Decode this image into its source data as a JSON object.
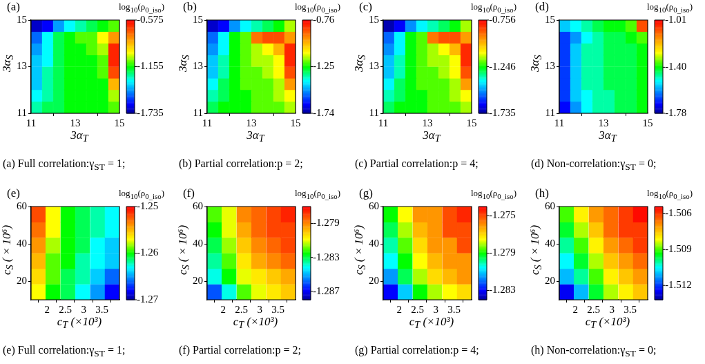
{
  "chart_data": [
    {
      "type": "heatmap",
      "title": "(a)",
      "xlabel": "3α$_{T}$",
      "ylabel": "3α$_{S}$",
      "clabel": "log$_{10}$(ρ$_{0_iso}$)",
      "annotations": [
        "(a) Full correlation:γ$_{ST}$ = 1;"
      ],
      "x": [
        11.25,
        11.75,
        12.25,
        12.75,
        13.25,
        13.75,
        14.25,
        14.75
      ],
      "y": [
        14.75,
        14.25,
        13.75,
        13.25,
        12.75,
        12.25,
        11.75,
        11.25
      ],
      "xlim": [
        11,
        15
      ],
      "xticks": [
        11,
        13,
        15
      ],
      "ylim": [
        11,
        15
      ],
      "yticks": [
        11,
        13,
        15
      ],
      "clim": [
        -1.735,
        -0.575
      ],
      "cticks": [
        -1.735,
        -1.155,
        -0.575
      ],
      "cells": [
        [
          -1.68,
          -1.62,
          -1.44,
          -1.33,
          -1.27,
          -1.21,
          -1.16,
          -1.1
        ],
        [
          -1.5,
          -1.33,
          -1.21,
          -1.16,
          -1.1,
          -1.1,
          -0.98,
          -0.81
        ],
        [
          -1.44,
          -1.33,
          -1.21,
          -1.16,
          -1.16,
          -1.1,
          -1.04,
          -0.63
        ],
        [
          -1.39,
          -1.33,
          -1.21,
          -1.16,
          -1.16,
          -1.16,
          -1.1,
          -0.63
        ],
        [
          -1.39,
          -1.27,
          -1.21,
          -1.16,
          -1.16,
          -1.16,
          -1.1,
          -0.69
        ],
        [
          -1.39,
          -1.27,
          -1.21,
          -1.16,
          -1.16,
          -1.16,
          -1.16,
          -0.86
        ],
        [
          -1.33,
          -1.27,
          -1.21,
          -1.16,
          -1.16,
          -1.16,
          -1.16,
          -1.04
        ],
        [
          -1.27,
          -1.21,
          -1.21,
          -1.16,
          -1.16,
          -1.16,
          -1.16,
          -1.1
        ]
      ]
    },
    {
      "type": "heatmap",
      "title": "(b)",
      "xlabel": "3α$_{T}$",
      "ylabel": "3α$_{S}$",
      "clabel": "log$_{10}$(ρ$_{0_iso}$)",
      "annotations": [
        "(b) Partial correlation:p = 2;"
      ],
      "x": [
        11.25,
        11.75,
        12.25,
        12.75,
        13.25,
        13.75,
        14.25,
        14.75
      ],
      "y": [
        14.75,
        14.25,
        13.75,
        13.25,
        12.75,
        12.25,
        11.75,
        11.25
      ],
      "xlim": [
        11,
        15
      ],
      "xticks": [
        11,
        13,
        15
      ],
      "ylim": [
        11,
        15
      ],
      "yticks": [
        11,
        13,
        15
      ],
      "clim": [
        -1.74,
        -0.76
      ],
      "cticks": [
        -1.74,
        -1.25,
        -0.76
      ],
      "cells": [
        [
          -1.69,
          -1.64,
          -1.5,
          -1.4,
          -1.35,
          -1.3,
          -1.25,
          -1.15
        ],
        [
          -1.54,
          -1.4,
          -1.25,
          -1.2,
          -0.91,
          -0.86,
          -0.86,
          -0.96
        ],
        [
          -1.5,
          -1.4,
          -1.25,
          -1.2,
          -1.15,
          -1.1,
          -1.0,
          -0.81
        ],
        [
          -1.45,
          -1.35,
          -1.25,
          -1.2,
          -1.15,
          -1.15,
          -1.1,
          -0.81
        ],
        [
          -1.45,
          -1.35,
          -1.25,
          -1.2,
          -1.2,
          -1.15,
          -1.1,
          -0.86
        ],
        [
          -1.4,
          -1.3,
          -1.25,
          -1.2,
          -1.2,
          -1.2,
          -1.15,
          -0.96
        ],
        [
          -1.35,
          -1.3,
          -1.25,
          -1.25,
          -1.2,
          -1.2,
          -1.15,
          -1.1
        ],
        [
          -1.3,
          -1.25,
          -1.25,
          -1.25,
          -1.2,
          -1.2,
          -1.2,
          -1.15
        ]
      ]
    },
    {
      "type": "heatmap",
      "title": "(c)",
      "xlabel": "3α$_{T}$",
      "ylabel": "3α$_{S}$",
      "clabel": "log$_{10}$(ρ$_{0_iso}$)",
      "annotations": [
        "(c) Partial correlation:p = 4;"
      ],
      "x": [
        11.25,
        11.75,
        12.25,
        12.75,
        13.25,
        13.75,
        14.25,
        14.75
      ],
      "y": [
        14.75,
        14.25,
        13.75,
        13.25,
        12.75,
        12.25,
        11.75,
        11.25
      ],
      "xlim": [
        11,
        15
      ],
      "xticks": [
        11,
        13,
        15
      ],
      "ylim": [
        11,
        15
      ],
      "yticks": [
        11,
        13,
        15
      ],
      "clim": [
        -1.735,
        -0.756
      ],
      "cticks": [
        -1.735,
        -1.246,
        -0.756
      ],
      "cells": [
        [
          -1.71,
          -1.64,
          -1.5,
          -1.4,
          -1.35,
          -1.3,
          -1.25,
          -1.15
        ],
        [
          -1.54,
          -1.4,
          -1.25,
          -1.2,
          -0.91,
          -0.86,
          -0.86,
          -0.96
        ],
        [
          -1.5,
          -1.4,
          -1.25,
          -1.2,
          -1.15,
          -1.1,
          -1.0,
          -0.81
        ],
        [
          -1.45,
          -1.35,
          -1.25,
          -1.2,
          -1.15,
          -1.15,
          -1.1,
          -0.81
        ],
        [
          -1.45,
          -1.35,
          -1.25,
          -1.2,
          -1.2,
          -1.15,
          -1.1,
          -0.86
        ],
        [
          -1.4,
          -1.3,
          -1.25,
          -1.2,
          -1.2,
          -1.2,
          -1.15,
          -0.96
        ],
        [
          -1.35,
          -1.3,
          -1.25,
          -1.25,
          -1.2,
          -1.2,
          -1.15,
          -1.1
        ],
        [
          -1.3,
          -1.25,
          -1.25,
          -1.25,
          -1.2,
          -1.2,
          -1.2,
          -1.15
        ]
      ]
    },
    {
      "type": "heatmap",
      "title": "(d)",
      "xlabel": "3α$_{T}$",
      "ylabel": "3α$_{S}$",
      "clabel": "log$_{10}$(ρ$_{0_iso}$)",
      "annotations": [
        "(d) Non-correlation:γ$_{ST}$ = 0;"
      ],
      "x": [
        11.25,
        11.75,
        12.25,
        12.75,
        13.25,
        13.75,
        14.25,
        14.75
      ],
      "y": [
        14.75,
        14.25,
        13.75,
        13.25,
        12.75,
        12.25,
        11.75,
        11.25
      ],
      "xlim": [
        11,
        15
      ],
      "xticks": [
        11,
        13,
        15
      ],
      "ylim": [
        11,
        15
      ],
      "yticks": [
        11,
        13,
        15
      ],
      "clim": [
        -1.78,
        -1.01
      ],
      "cticks": [
        -1.78,
        {
          "value": -1.4,
          "label": "-1.40"
        },
        -1.01
      ],
      "cells": [
        [
          -1.55,
          -1.51,
          -1.47,
          -1.43,
          -1.4,
          -1.4,
          -1.36,
          -1.09
        ],
        [
          -1.66,
          -1.59,
          -1.51,
          -1.47,
          -1.43,
          -1.43,
          -1.4,
          -1.36
        ],
        [
          -1.66,
          -1.55,
          -1.47,
          -1.47,
          -1.43,
          -1.43,
          -1.43,
          -1.4
        ],
        [
          -1.66,
          -1.55,
          -1.47,
          -1.47,
          -1.43,
          -1.43,
          -1.43,
          -1.4
        ],
        [
          -1.66,
          -1.55,
          -1.47,
          -1.47,
          -1.43,
          -1.43,
          -1.43,
          -1.4
        ],
        [
          -1.66,
          -1.55,
          -1.47,
          -1.47,
          -1.43,
          -1.43,
          -1.43,
          -1.4
        ],
        [
          -1.66,
          -1.55,
          -1.51,
          -1.47,
          -1.47,
          -1.43,
          -1.43,
          -1.4
        ],
        [
          -1.7,
          -1.59,
          -1.51,
          -1.47,
          -1.47,
          -1.43,
          -1.43,
          -1.4
        ]
      ]
    },
    {
      "type": "heatmap",
      "title": "(e)",
      "xlabel": "c$_{T}$ (×10³)",
      "ylabel": "c$_{S}$ (×10⁶)",
      "clabel": "log$_{10}$(ρ$_{0_iso}$)",
      "annotations": [
        "(e) Full correlation:γ$_{ST}$ = 1;"
      ],
      "x": [
        1.76,
        2.16,
        2.57,
        2.97,
        3.38,
        3.78
      ],
      "y": [
        55.8,
        47.5,
        39.2,
        30.8,
        22.5,
        14.2
      ],
      "xlim": [
        1.56,
        3.98
      ],
      "xticks": [
        2,
        2.5,
        3,
        3.5
      ],
      "ylim": [
        10,
        60
      ],
      "yticks": [
        20,
        40,
        60
      ],
      "clim": [
        -1.27,
        -1.25
      ],
      "cticks": [
        -1.27,
        -1.26,
        -1.25
      ],
      "cells": [
        [
          -1.252,
          -1.257,
          -1.26,
          -1.261,
          -1.262,
          -1.263
        ],
        [
          -1.253,
          -1.257,
          -1.26,
          -1.261,
          -1.262,
          -1.263
        ],
        [
          -1.254,
          -1.258,
          -1.26,
          -1.261,
          -1.263,
          -1.264
        ],
        [
          -1.255,
          -1.259,
          -1.26,
          -1.262,
          -1.263,
          -1.264
        ],
        [
          -1.256,
          -1.259,
          -1.261,
          -1.262,
          -1.264,
          -1.266
        ],
        [
          -1.257,
          -1.26,
          -1.261,
          -1.263,
          -1.265,
          -1.268
        ]
      ]
    },
    {
      "type": "heatmap",
      "title": "(f)",
      "xlabel": "c$_{T}$ (×10³)",
      "ylabel": "c$_{S}$ (×10⁶)",
      "clabel": "log$_{10}$(ρ$_{0_iso}$)",
      "annotations": [
        "(f) Partial correlation:p = 2;"
      ],
      "x": [
        1.76,
        2.16,
        2.57,
        2.97,
        3.38,
        3.78
      ],
      "y": [
        55.8,
        47.5,
        39.2,
        30.8,
        22.5,
        14.2
      ],
      "xlim": [
        1.56,
        3.98
      ],
      "xticks": [
        2,
        2.5,
        3,
        3.5
      ],
      "ylim": [
        10,
        60
      ],
      "yticks": [
        20,
        40,
        60
      ],
      "clim": [
        -1.288,
        -1.277
      ],
      "cticks": [
        -1.287,
        -1.283,
        -1.279
      ],
      "cells": [
        [
          -1.282,
          -1.281,
          -1.279,
          -1.2785,
          -1.278,
          -1.2775
        ],
        [
          -1.2825,
          -1.281,
          -1.2795,
          -1.2785,
          -1.278,
          -1.278
        ],
        [
          -1.283,
          -1.2815,
          -1.28,
          -1.279,
          -1.2785,
          -1.278
        ],
        [
          -1.2835,
          -1.282,
          -1.2805,
          -1.2795,
          -1.279,
          -1.2785
        ],
        [
          -1.284,
          -1.2825,
          -1.281,
          -1.2805,
          -1.28,
          -1.2795
        ],
        [
          -1.286,
          -1.284,
          -1.282,
          -1.281,
          -1.2805,
          -1.28
        ]
      ]
    },
    {
      "type": "heatmap",
      "title": "(g)",
      "xlabel": "c$_{T}$ (×10³)",
      "ylabel": "c$_{S}$ (×10⁶)",
      "clabel": "log$_{10}$(ρ$_{0_iso}$)",
      "annotations": [
        "(g) Partial correlation:p = 4;"
      ],
      "x": [
        1.76,
        2.16,
        2.57,
        2.97,
        3.38,
        3.78
      ],
      "y": [
        55.8,
        47.5,
        39.2,
        30.8,
        22.5,
        14.2
      ],
      "xlim": [
        1.56,
        3.98
      ],
      "xticks": [
        2,
        2.5,
        3,
        3.5
      ],
      "ylim": [
        10,
        60
      ],
      "yticks": [
        20,
        40,
        60
      ],
      "clim": [
        -1.284,
        -1.274
      ],
      "cticks": [
        -1.283,
        -1.279,
        -1.275
      ],
      "cells": [
        [
          -1.279,
          -1.2775,
          -1.276,
          -1.276,
          -1.275,
          -1.2745
        ],
        [
          -1.2795,
          -1.278,
          -1.2765,
          -1.276,
          -1.275,
          -1.275
        ],
        [
          -1.28,
          -1.2785,
          -1.277,
          -1.276,
          -1.276,
          -1.275
        ],
        [
          -1.2805,
          -1.279,
          -1.2775,
          -1.2765,
          -1.276,
          -1.276
        ],
        [
          -1.2815,
          -1.2795,
          -1.278,
          -1.277,
          -1.2765,
          -1.276
        ],
        [
          -1.283,
          -1.281,
          -1.279,
          -1.278,
          -1.2775,
          -1.277
        ]
      ]
    },
    {
      "type": "heatmap",
      "title": "(h)",
      "xlabel": "c$_{T}$ (×10³)",
      "ylabel": "c$_{S}$ (×10⁶)",
      "clabel": "log$_{10}$(ρ$_{0_iso}$)",
      "annotations": [
        "(h) Non-correlation:γ$_{ST}$ = 0;"
      ],
      "x": [
        1.76,
        2.16,
        2.57,
        2.97,
        3.38,
        3.78
      ],
      "y": [
        55.8,
        47.5,
        39.2,
        30.8,
        22.5,
        14.2
      ],
      "xlim": [
        1.56,
        3.98
      ],
      "xticks": [
        2,
        2.5,
        3,
        3.5
      ],
      "ylim": [
        10,
        60
      ],
      "yticks": [
        20,
        40,
        60
      ],
      "clim": [
        -1.5132,
        -1.5054
      ],
      "cticks": [
        -1.512,
        -1.509,
        -1.506
      ],
      "cells": [
        [
          -1.509,
          -1.508,
          -1.507,
          -1.5065,
          -1.506,
          -1.5055
        ],
        [
          -1.5095,
          -1.5085,
          -1.5075,
          -1.5065,
          -1.506,
          -1.506
        ],
        [
          -1.51,
          -1.509,
          -1.508,
          -1.507,
          -1.5065,
          -1.506
        ],
        [
          -1.5105,
          -1.5095,
          -1.5085,
          -1.5075,
          -1.507,
          -1.5065
        ],
        [
          -1.511,
          -1.51,
          -1.509,
          -1.508,
          -1.5075,
          -1.507
        ],
        [
          -1.5125,
          -1.511,
          -1.5095,
          -1.5085,
          -1.508,
          -1.5075
        ]
      ]
    }
  ]
}
